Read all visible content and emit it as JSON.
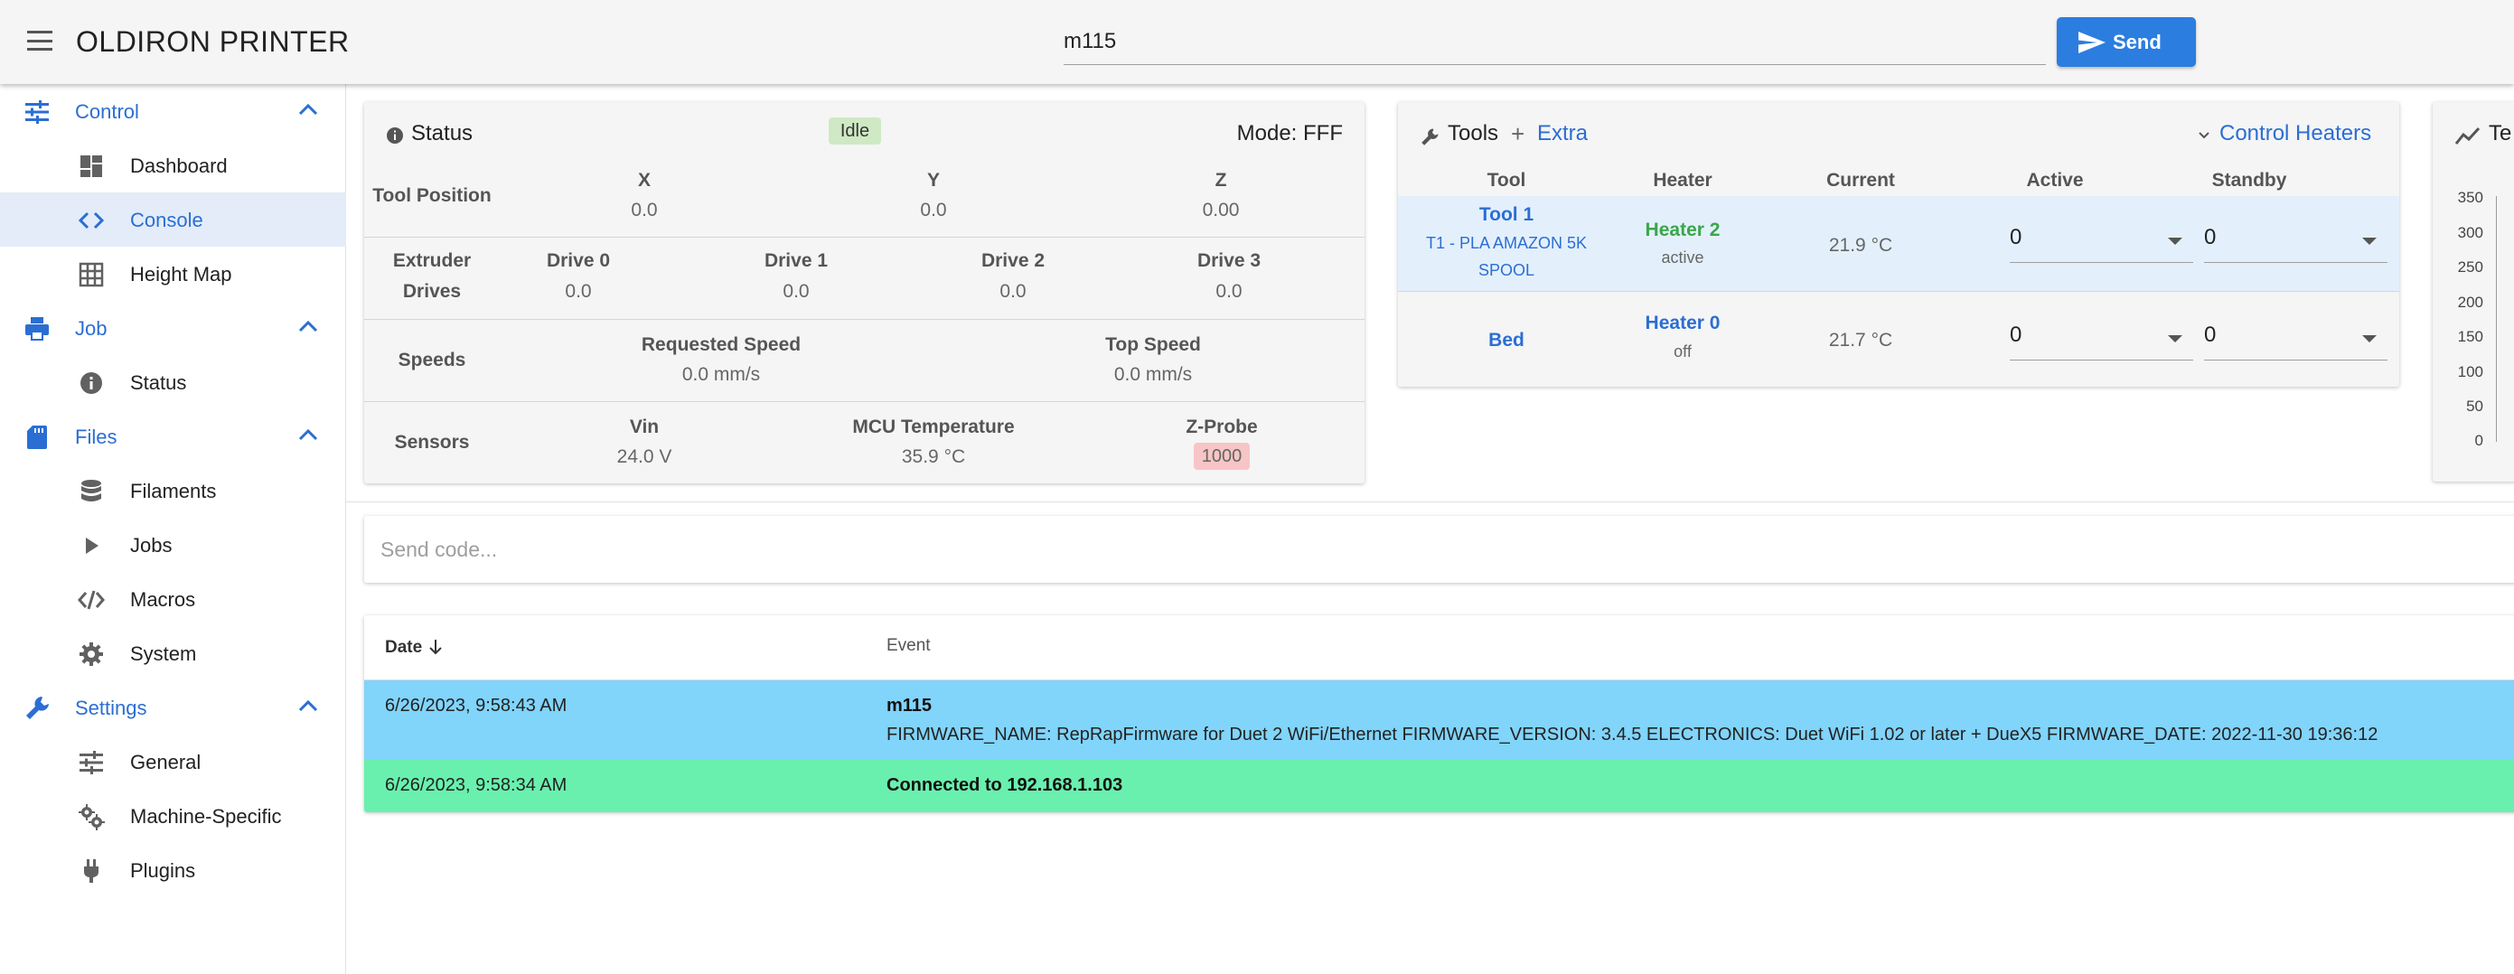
{
  "app": {
    "title": "OLDIRON PRINTER"
  },
  "topbar": {
    "code_value": "m115",
    "send_label": "Send"
  },
  "sidebar": {
    "groups": [
      {
        "label": "Control",
        "items": [
          "Dashboard",
          "Console",
          "Height Map"
        ]
      },
      {
        "label": "Job",
        "items": [
          "Status"
        ]
      },
      {
        "label": "Files",
        "items": [
          "Filaments",
          "Jobs",
          "Macros",
          "System"
        ]
      },
      {
        "label": "Settings",
        "items": [
          "General",
          "Machine-Specific",
          "Plugins"
        ]
      }
    ],
    "active_item": "Console"
  },
  "status": {
    "title": "Status",
    "state": "Idle",
    "mode": "Mode: FFF",
    "tool_position": {
      "label": "Tool Position",
      "axes": [
        {
          "name": "X",
          "value": "0.0"
        },
        {
          "name": "Y",
          "value": "0.0"
        },
        {
          "name": "Z",
          "value": "0.00"
        }
      ]
    },
    "extruder": {
      "label_line1": "Extruder",
      "label_line2": "Drives",
      "drives": [
        {
          "name": "Drive 0",
          "value": "0.0"
        },
        {
          "name": "Drive 1",
          "value": "0.0"
        },
        {
          "name": "Drive 2",
          "value": "0.0"
        },
        {
          "name": "Drive 3",
          "value": "0.0"
        }
      ]
    },
    "speeds": {
      "label": "Speeds",
      "requested_label": "Requested Speed",
      "requested_value": "0.0 mm/s",
      "top_label": "Top Speed",
      "top_value": "0.0 mm/s"
    },
    "sensors": {
      "label": "Sensors",
      "vin_label": "Vin",
      "vin_value": "24.0 V",
      "mcu_label": "MCU Temperature",
      "mcu_value": "35.9 °C",
      "probe_label": "Z-Probe",
      "probe_value": "1000"
    }
  },
  "tools": {
    "title": "Tools",
    "extra_label": "Extra",
    "control_heaters_label": "Control Heaters",
    "columns": [
      "Tool",
      "Heater",
      "Current",
      "Active",
      "Standby"
    ],
    "rows": [
      {
        "tool": "Tool 1",
        "tool_sub1": "T1 - PLA AMAZON 5K",
        "tool_sub2": "SPOOL",
        "heater": "Heater 2",
        "heater_state": "active",
        "current": "21.9 °C",
        "active": "0",
        "standby": "0"
      },
      {
        "tool": "Bed",
        "heater": "Heater 0",
        "heater_state": "off",
        "current": "21.7 °C",
        "active": "0",
        "standby": "0"
      }
    ]
  },
  "temp_chart": {
    "title_partial": "Te",
    "y_ticks": [
      "350",
      "300",
      "250",
      "200",
      "150",
      "100",
      "50",
      "0"
    ]
  },
  "console": {
    "placeholder": "Send code...",
    "columns": {
      "date": "Date",
      "event": "Event"
    },
    "rows": [
      {
        "date": "6/26/2023, 9:58:43 AM",
        "title": "m115",
        "text": "FIRMWARE_NAME: RepRapFirmware for Duet 2 WiFi/Ethernet FIRMWARE_VERSION: 3.4.5 ELECTRONICS: Duet WiFi 1.02 or later + DueX5 FIRMWARE_DATE: 2022-11-30 19:36:12"
      },
      {
        "date": "6/26/2023, 9:58:34 AM",
        "title": "Connected to 192.168.1.103",
        "text": ""
      }
    ]
  },
  "colors": {
    "accent": "#2b6ed3",
    "send_button": "#2b7de0",
    "idle_chip": "#cfe9c4",
    "probe_chip": "#f7c5c5",
    "log_info": "#81d4fa",
    "log_success": "#69f0ae",
    "heater_active": "#3aa64a"
  }
}
